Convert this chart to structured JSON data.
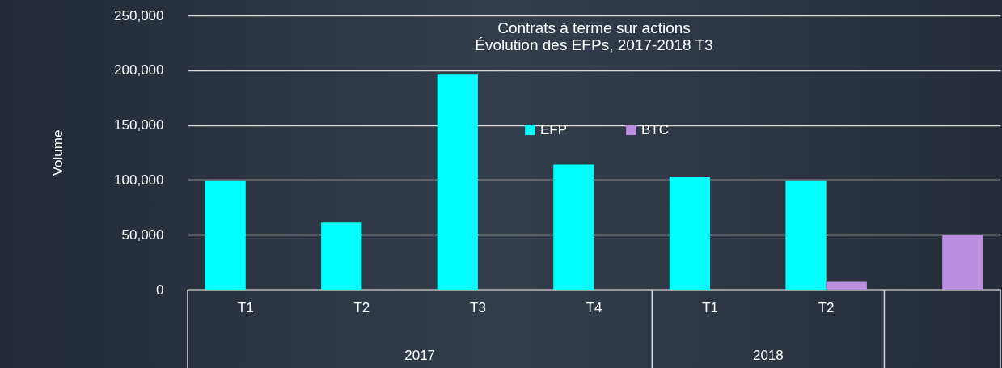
{
  "chart_data": {
    "type": "bar",
    "title": "Contrats à terme sur actions",
    "subtitle": "Évolution des EFPs, 2017-2018 T3",
    "ylabel": "Volume",
    "categories": [
      "T1",
      "T2",
      "T3",
      "T4",
      "T1",
      "T2",
      null
    ],
    "annotations": [
      "2017",
      "2018"
    ],
    "series": [
      {
        "name": "EFP",
        "color": "#00ffff",
        "values": [
          99000,
          61000,
          196000,
          114000,
          102500,
          99000,
          null
        ]
      },
      {
        "name": "BTC",
        "color": "#bb8fdf",
        "values": [
          null,
          null,
          null,
          null,
          null,
          7000,
          50000
        ]
      }
    ],
    "ylim": [
      0,
      250000
    ],
    "yticks": [
      0,
      {
        "value": 50000,
        "label": "50,000"
      },
      {
        "value": 100000,
        "label": "100,000"
      },
      {
        "value": 150000,
        "label": "150,000"
      },
      {
        "value": 200000,
        "label": "200,000"
      },
      {
        "value": 250000,
        "label": "250,000"
      }
    ],
    "grid": "y",
    "legend": "top"
  }
}
